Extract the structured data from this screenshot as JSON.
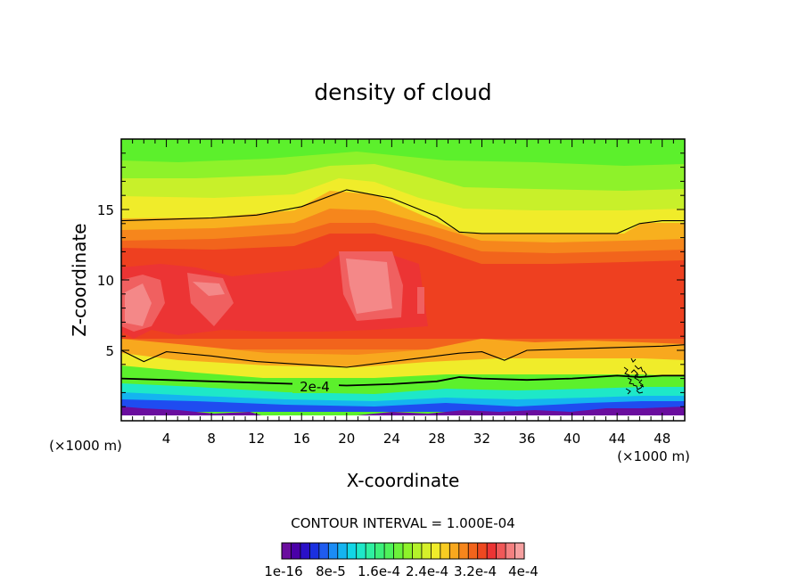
{
  "chart_data": {
    "type": "heatmap",
    "title": "density of cloud",
    "xlabel": "X-coordinate",
    "ylabel": "Z-coordinate",
    "x_unit_left": "(×1000 m)",
    "x_unit_right": "(×1000 m)",
    "xlim": [
      0,
      50
    ],
    "ylim": [
      0,
      20
    ],
    "xticks": [
      "4",
      "8",
      "12",
      "16",
      "20",
      "24",
      "28",
      "32",
      "36",
      "40",
      "44",
      "48"
    ],
    "yticks": [
      "5",
      "10",
      "15"
    ],
    "contour_interval_text": "CONTOUR INTERVAL = 1.000E-04",
    "contour_label": "2e-4",
    "colorbar_labels": [
      "1e-16",
      "8e-5",
      "1.6e-4",
      "2.4e-4",
      "3.2e-4",
      "4e-4"
    ],
    "colorbar_colors": [
      "#6a0d9e",
      "#4a00a8",
      "#2a10c8",
      "#1a30e0",
      "#1f5cf0",
      "#1b8cf5",
      "#14b4f0",
      "#12d6e6",
      "#1ee8c8",
      "#2ef0a0",
      "#3cf07a",
      "#4ef25a",
      "#6cf23a",
      "#8ef22a",
      "#b4f22a",
      "#d6f02a",
      "#f0ec2a",
      "#f8cc22",
      "#f8a81e",
      "#f6861c",
      "#f2641c",
      "#ee4820",
      "#ec3434",
      "#f05858",
      "#f48080",
      "#f6a0a0"
    ],
    "series": [
      {
        "x": [
          0,
          4,
          8,
          12,
          16,
          20,
          24,
          28,
          30,
          32,
          36,
          40,
          44,
          46,
          48,
          50
        ],
        "values": [
          3.0,
          2.9,
          2.8,
          2.7,
          2.6,
          2.5,
          2.6,
          2.8,
          3.1,
          3.0,
          2.9,
          3.0,
          3.2,
          3.1,
          3.2,
          3.2
        ]
      },
      {
        "x": [
          0,
          4,
          8,
          12,
          16,
          20,
          24,
          28,
          30,
          32,
          36,
          40,
          44,
          46,
          48,
          50
        ],
        "values": [
          14.2,
          14.3,
          14.4,
          14.6,
          15.2,
          16.4,
          15.8,
          14.5,
          13.4,
          13.3,
          13.3,
          13.3,
          13.3,
          14.0,
          14.2,
          14.2
        ]
      },
      {
        "x": [
          0,
          2,
          4,
          8,
          12,
          16,
          20,
          24,
          28,
          30,
          32,
          34,
          36,
          40,
          44,
          48,
          50
        ],
        "values": [
          5.0,
          4.2,
          4.9,
          4.6,
          4.2,
          4.0,
          3.8,
          4.2,
          4.6,
          4.8,
          4.9,
          4.3,
          5.0,
          5.1,
          5.2,
          5.3,
          5.4
        ]
      }
    ]
  }
}
